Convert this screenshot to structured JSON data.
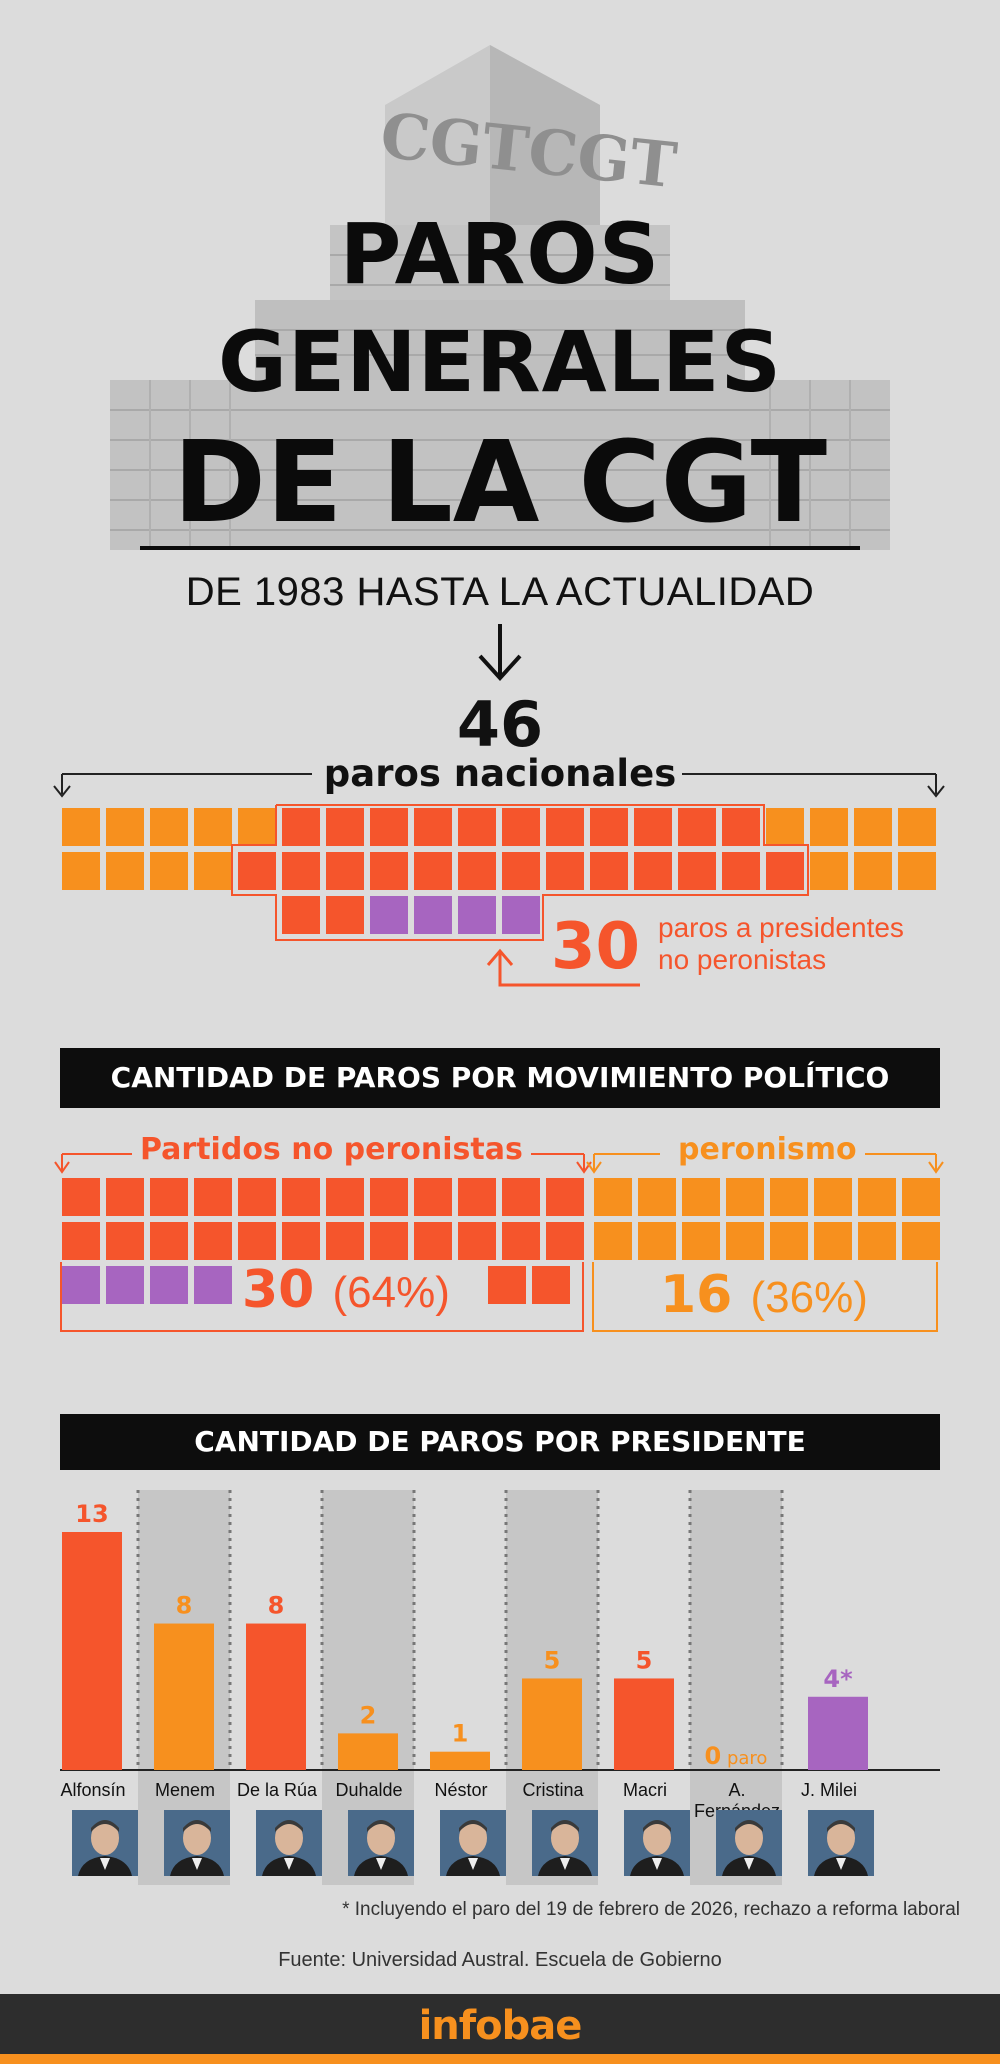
{
  "header": {
    "building_sign": "CGTCGT",
    "title_line1": "PAROS",
    "title_line2": "GENERALES",
    "title_line3": "DE LA CGT",
    "subtitle": "DE 1983 HASTA LA ACTUALIDAD"
  },
  "totals": {
    "total_value": "46",
    "total_label": "paros nacionales",
    "non_peronist_value": "30",
    "non_peronist_label_line1": "paros a presidentes",
    "non_peronist_label_line2": "no peronistas"
  },
  "colors": {
    "non_peronist": "#f5552c",
    "peronist": "#f7901e",
    "milei": "#a765c0",
    "background": "#dcdcdc"
  },
  "section_movement": {
    "title": "CANTIDAD DE PAROS POR MOVIMIENTO POLÍTICO",
    "non_peronist": {
      "label": "Partidos no peronistas",
      "count": "30",
      "pct": "(64%)"
    },
    "peronist": {
      "label": "peronismo",
      "count": "16",
      "pct": "(36%)"
    }
  },
  "section_president": {
    "title": "CANTIDAD DE PAROS POR PRESIDENTE"
  },
  "chart_data": {
    "type": "bar",
    "title": "CANTIDAD DE PAROS POR PRESIDENTE",
    "categories": [
      "Alfonsín",
      "Menem",
      "De la Rúa",
      "Duhalde",
      "Néstor",
      "Cristina",
      "Macri",
      "A. Fernández",
      "J. Milei"
    ],
    "values": [
      13,
      8,
      8,
      2,
      1,
      5,
      5,
      0,
      4
    ],
    "value_labels": [
      "13",
      "8",
      "8",
      "2",
      "1",
      "5",
      "5",
      "0",
      "4*"
    ],
    "zero_unit": "paro",
    "groups": [
      "non_peronist",
      "peronist",
      "non_peronist",
      "peronist",
      "peronist",
      "peronist",
      "non_peronist",
      "peronist",
      "milei"
    ],
    "ylim": [
      0,
      14
    ],
    "grid": false
  },
  "footnote": "* Incluyendo el paro del 19 de febrero de 2026, rechazo a reforma laboral",
  "source": "Fuente: Universidad Austral. Escuela de Gobierno",
  "brand": "infobae"
}
